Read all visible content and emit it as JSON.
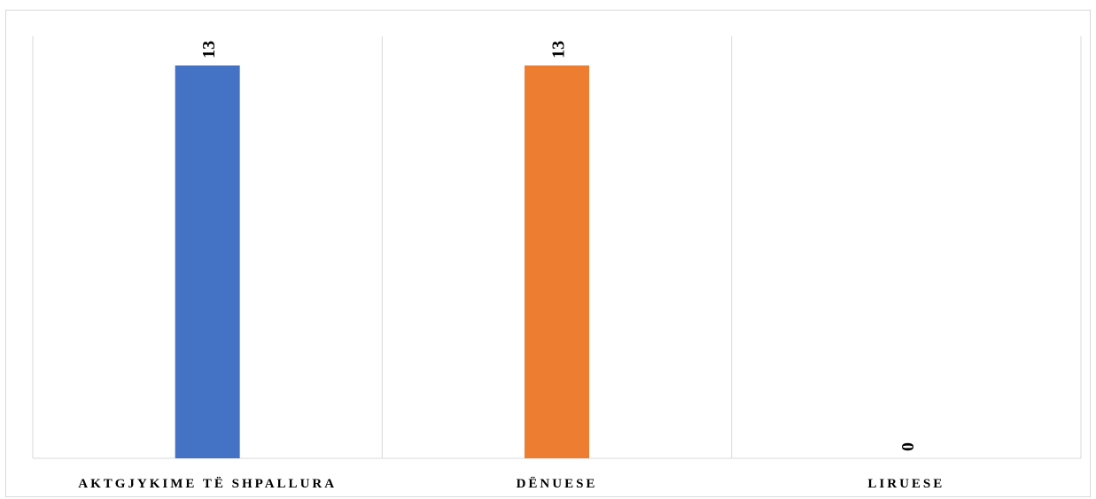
{
  "chart_data": {
    "type": "bar",
    "categories": [
      "AKTGJYKIME TË SHPALLURA",
      "DËNUESE",
      "LIRUESE"
    ],
    "values": [
      13,
      13,
      0
    ],
    "colors": [
      "#4472C4",
      "#ED7D31",
      "#A5A5A5"
    ],
    "ylim": [
      0,
      13
    ],
    "grid": true,
    "legend": "none",
    "data_labels": true
  }
}
